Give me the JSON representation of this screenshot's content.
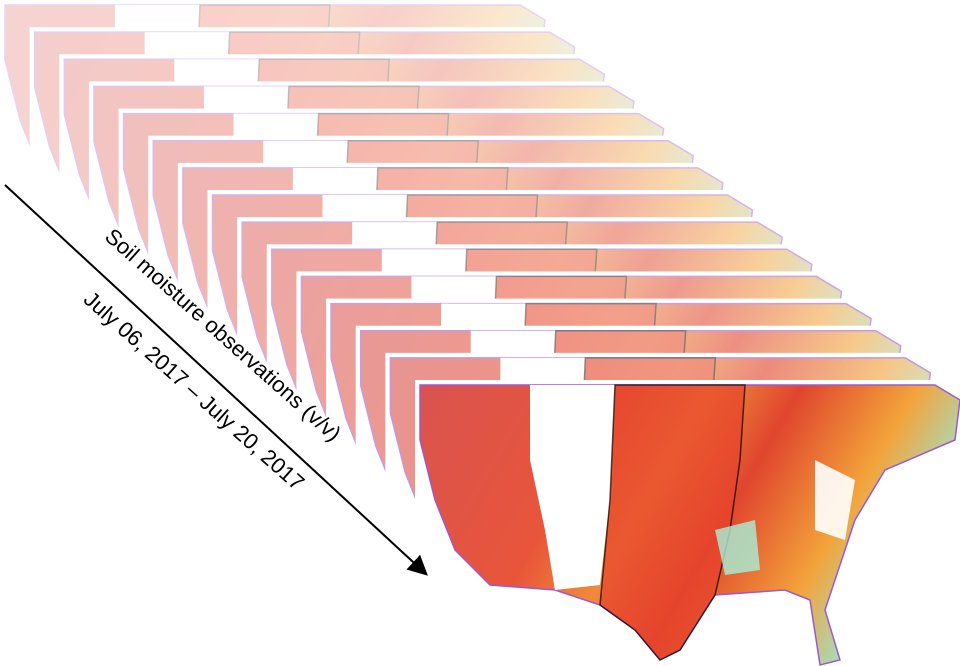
{
  "figure": {
    "axis_label": "Soil moisture observations (v/v)",
    "date_range": "July 06, 2017 – July 20, 2017"
  }
}
